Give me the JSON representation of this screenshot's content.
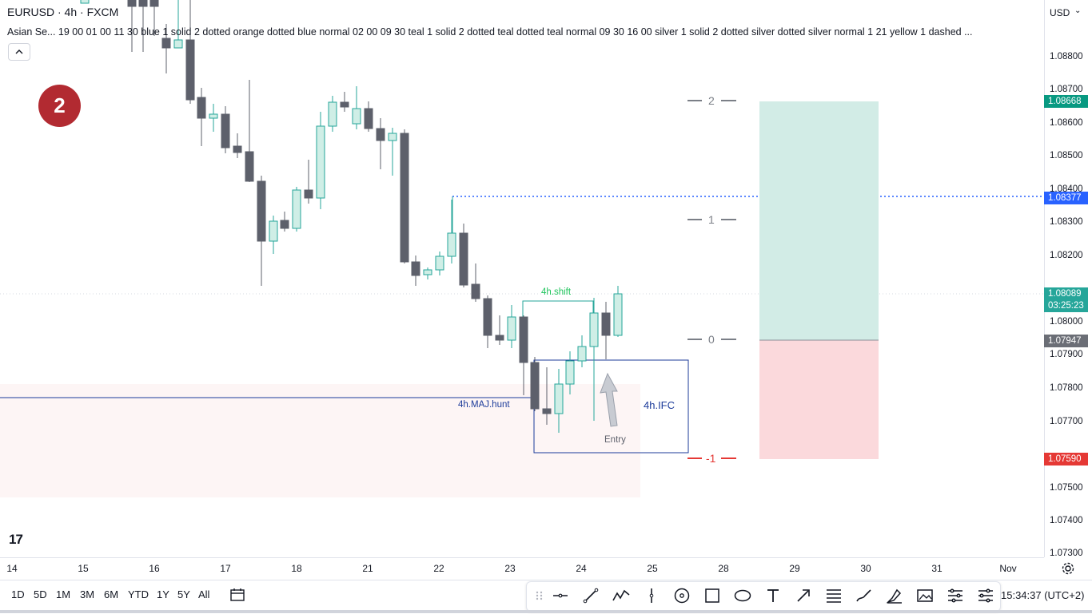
{
  "header": {
    "title": "EURUSD · 4h · FXCM",
    "indicator_line": "Asian Se... 19 00 01 00 11 30 blue 1 solid 2 dotted orange dotted blue normal 02 00 09 30 teal 1 solid 2 dotted teal dotted teal normal 09 30 16 00 silver 1 solid 2 dotted silver dotted silver normal 1 21 yellow 1 dashed ...",
    "collapse_icon": "chevron-up-icon"
  },
  "badge": {
    "number": "2"
  },
  "currency": {
    "selected": "USD"
  },
  "price_ticks": [
    "1.08800",
    "1.08700",
    "1.08600",
    "1.08500",
    "1.08400",
    "1.08300",
    "1.08200",
    "1.08000",
    "1.07900",
    "1.07800",
    "1.07700",
    "1.07500",
    "1.07400",
    "1.07300"
  ],
  "price_labels": {
    "target": "1.08668",
    "level": "1.08377",
    "current": "1.08089",
    "countdown": "03:25:23",
    "entry": "1.07947",
    "stop": "1.07590"
  },
  "fib_levels": [
    "2",
    "1",
    "0",
    "-1"
  ],
  "annotations": {
    "shift": "4h.shift",
    "maj_hunt": "4h.MAJ.hunt",
    "ifc": "4h.IFC",
    "entry": "Entry"
  },
  "time_ticks": [
    "14",
    "15",
    "16",
    "17",
    "18",
    "21",
    "22",
    "23",
    "24",
    "25",
    "28",
    "29",
    "30",
    "31",
    "Nov"
  ],
  "ranges": [
    "1D",
    "5D",
    "1M",
    "3M",
    "6M",
    "YTD",
    "1Y",
    "5Y",
    "All"
  ],
  "clock": "15:34:37 (UTC+2)",
  "colors": {
    "bear": "#5d606b",
    "bull_fill": "#cfeee6",
    "bull_border": "#26a69a",
    "target_zone": "#d2ece6",
    "stop_zone": "#fbd9dc",
    "blue": "#2962ff",
    "navy": "#1c3b9a",
    "green_text": "#22c55e",
    "stop_red": "#e53935",
    "target_green": "#089981",
    "badge_red": "#b22a31"
  },
  "drawing_tools": [
    "drag-handle-icon",
    "horizontal-line-icon",
    "trend-line-icon",
    "pattern-icon",
    "vertical-line-icon",
    "circle-tool-icon",
    "rectangle-tool-icon",
    "ellipse-tool-icon",
    "text-tool-icon",
    "arrow-tool-icon",
    "fib-tool-icon",
    "brush-tool-icon",
    "highlighter-icon",
    "image-tool-icon",
    "position-tool-icon",
    "more-tools-icon"
  ]
}
